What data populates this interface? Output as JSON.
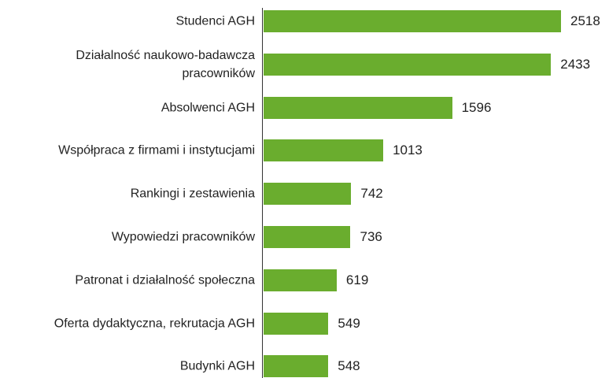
{
  "chart_data": {
    "type": "bar",
    "orientation": "horizontal",
    "categories": [
      "Studenci AGH",
      "Działalność naukowo-badawcza\npracowników",
      "Absolwenci AGH",
      "Współpraca z firmami i instytucjami",
      "Rankingi i zestawienia",
      "Wypowiedzi pracowników",
      "Patronat i działalność społeczna",
      "Oferta dydaktyczna, rekrutacja AGH",
      "Budynki AGH"
    ],
    "values": [
      2518,
      2433,
      1596,
      1013,
      742,
      736,
      619,
      549,
      548
    ],
    "color": "#6aad2e"
  }
}
